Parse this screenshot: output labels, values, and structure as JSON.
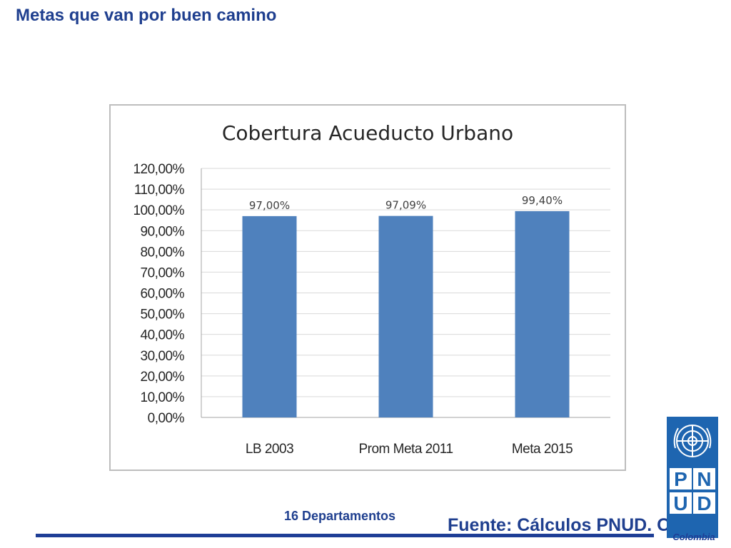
{
  "slide": {
    "title": "Metas que van por buen camino",
    "departments_label": "16 Departamentos",
    "source_label": "Fuente: Cálculos PNUD. ODM",
    "logo_text": "PNUD",
    "logo_caption": "Colombia"
  },
  "colors": {
    "title_blue": "#1f3f8f",
    "bar_blue": "#4f81bd",
    "logo_blue": "#1e65b0"
  },
  "chart_data": {
    "type": "bar",
    "title": "Cobertura Acueducto Urbano",
    "categories": [
      "LB 2003",
      "Prom Meta 2011",
      "Meta 2015"
    ],
    "values": [
      97.0,
      97.09,
      99.4
    ],
    "data_labels": [
      "97,00%",
      "97,09%",
      "99,40%"
    ],
    "ylim": [
      0,
      120
    ],
    "yticks": [
      "0,00%",
      "10,00%",
      "20,00%",
      "30,00%",
      "40,00%",
      "50,00%",
      "60,00%",
      "70,00%",
      "80,00%",
      "90,00%",
      "100,00%",
      "110,00%",
      "120,00%"
    ],
    "grid": true,
    "legend": "none"
  }
}
